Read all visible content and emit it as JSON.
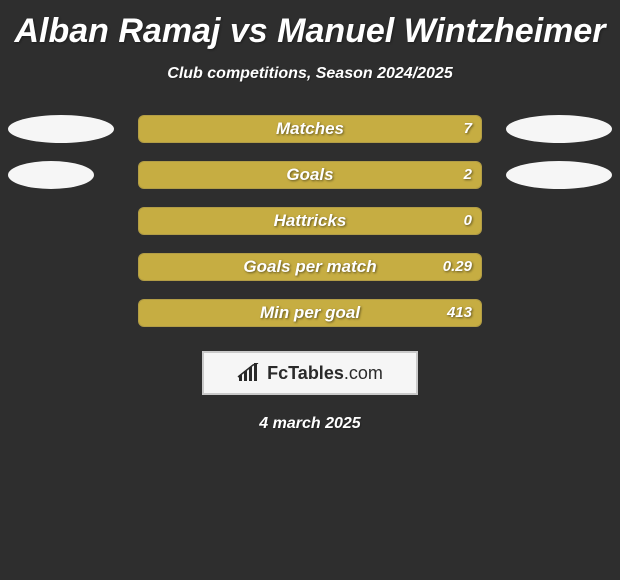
{
  "colors": {
    "background": "#2e2e2e",
    "title": "#ffffff",
    "subtitle": "#ffffff",
    "text": "#ffffff",
    "ellipse": "#f6f6f6",
    "bar_track": "#a58c26",
    "bar_fill": "#c6ad42",
    "logo_bg": "#f6f6f6",
    "logo_border": "#cacaca",
    "logo_text": "#2a2a2a",
    "date": "#ffffff"
  },
  "title": "Alban Ramaj vs Manuel Wintzheimer",
  "subtitle": "Club competitions, Season 2024/2025",
  "date": "4 march 2025",
  "logo": {
    "brand": "FcTables",
    "suffix": ".com"
  },
  "ellipses": {
    "row0_left_w": 106,
    "row0_right_w": 106,
    "row1_left_w": 86,
    "row1_right_w": 106
  },
  "stats": [
    {
      "label": "Matches",
      "value": "7",
      "fill_pct": 100
    },
    {
      "label": "Goals",
      "value": "2",
      "fill_pct": 100
    },
    {
      "label": "Hattricks",
      "value": "0",
      "fill_pct": 100
    },
    {
      "label": "Goals per match",
      "value": "0.29",
      "fill_pct": 100
    },
    {
      "label": "Min per goal",
      "value": "413",
      "fill_pct": 100
    }
  ]
}
